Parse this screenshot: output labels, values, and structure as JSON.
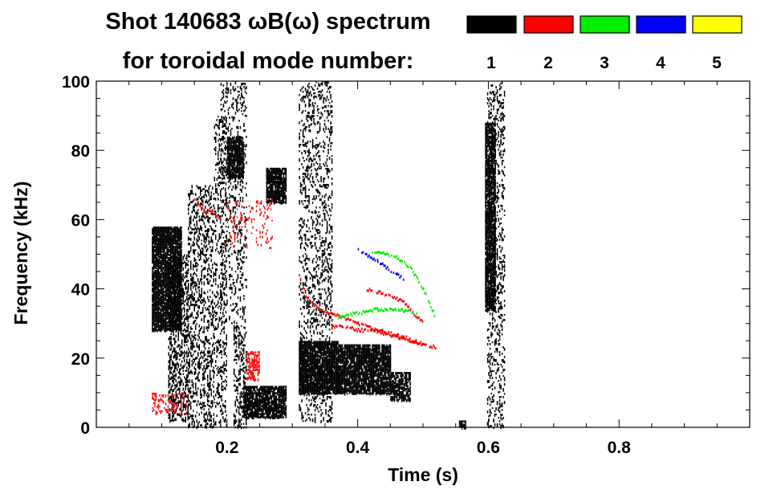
{
  "chart_data": {
    "type": "heatmap",
    "title_line1": "Shot 140683 ωB(ω) spectrum",
    "title_line2": "for toroidal mode number:",
    "xlabel": "Time (s)",
    "ylabel": "Frequency (kHz)",
    "xlim": [
      0.0,
      1.0
    ],
    "ylim": [
      0,
      100
    ],
    "x_ticks": [
      {
        "value": 0.2,
        "label": "0.2"
      },
      {
        "value": 0.4,
        "label": "0.4"
      },
      {
        "value": 0.6,
        "label": "0.6"
      },
      {
        "value": 0.8,
        "label": "0.8"
      }
    ],
    "y_ticks": [
      {
        "value": 0,
        "label": "0"
      },
      {
        "value": 20,
        "label": "20"
      },
      {
        "value": 40,
        "label": "40"
      },
      {
        "value": 60,
        "label": "60"
      },
      {
        "value": 80,
        "label": "80"
      },
      {
        "value": 100,
        "label": "100"
      }
    ],
    "legend": [
      {
        "label": "1",
        "color": "#000000"
      },
      {
        "label": "2",
        "color": "#ff0000"
      },
      {
        "label": "3",
        "color": "#00ee00"
      },
      {
        "label": "4",
        "color": "#0000ff"
      },
      {
        "label": "5",
        "color": "#ffff00"
      }
    ],
    "regions": [
      {
        "mode": 1,
        "t": [
          0.085,
          0.13
        ],
        "f": [
          28,
          58
        ],
        "density": 0.9
      },
      {
        "mode": 1,
        "t": [
          0.11,
          0.14
        ],
        "f": [
          2,
          50
        ],
        "density": 0.35
      },
      {
        "mode": 1,
        "t": [
          0.14,
          0.18
        ],
        "f": [
          0,
          70
        ],
        "density": 0.25
      },
      {
        "mode": 1,
        "t": [
          0.18,
          0.2
        ],
        "f": [
          0,
          90
        ],
        "density": 0.2
      },
      {
        "mode": 1,
        "t": [
          0.2,
          0.225
        ],
        "f": [
          72,
          84
        ],
        "density": 0.85
      },
      {
        "mode": 1,
        "t": [
          0.19,
          0.23
        ],
        "f": [
          30,
          100
        ],
        "density": 0.15
      },
      {
        "mode": 1,
        "t": [
          0.21,
          0.23
        ],
        "f": [
          0,
          30
        ],
        "density": 0.3
      },
      {
        "mode": 1,
        "t": [
          0.225,
          0.29
        ],
        "f": [
          3,
          12
        ],
        "density": 0.8
      },
      {
        "mode": 1,
        "t": [
          0.26,
          0.29
        ],
        "f": [
          65,
          75
        ],
        "density": 0.85
      },
      {
        "mode": 1,
        "t": [
          0.31,
          0.36
        ],
        "f": [
          2,
          100
        ],
        "density": 0.2
      },
      {
        "mode": 1,
        "t": [
          0.31,
          0.37
        ],
        "f": [
          10,
          25
        ],
        "density": 0.9
      },
      {
        "mode": 1,
        "t": [
          0.37,
          0.45
        ],
        "f": [
          10,
          24
        ],
        "density": 0.85
      },
      {
        "mode": 1,
        "t": [
          0.45,
          0.48
        ],
        "f": [
          8,
          16
        ],
        "density": 0.7
      },
      {
        "mode": 1,
        "t": [
          0.595,
          0.61
        ],
        "f": [
          34,
          88
        ],
        "density": 0.85
      },
      {
        "mode": 1,
        "t": [
          0.598,
          0.625
        ],
        "f": [
          0,
          100
        ],
        "density": 0.2
      },
      {
        "mode": 1,
        "t": [
          0.555,
          0.565
        ],
        "f": [
          0,
          2
        ],
        "density": 0.9
      },
      {
        "mode": 2,
        "t": [
          0.2,
          0.27
        ],
        "f": [
          52,
          66
        ],
        "density": 0.1
      },
      {
        "mode": 2,
        "t": [
          0.23,
          0.25
        ],
        "f": [
          14,
          22
        ],
        "density": 0.5
      },
      {
        "mode": 2,
        "t": [
          0.085,
          0.14
        ],
        "f": [
          4,
          10
        ],
        "density": 0.2
      }
    ],
    "mode_curves": [
      {
        "mode": 2,
        "t": [
          0.15,
          0.16,
          0.175,
          0.185,
          0.19
        ],
        "f": [
          66,
          63,
          62,
          61,
          60
        ]
      },
      {
        "mode": 2,
        "t": [
          0.31,
          0.32,
          0.34,
          0.37,
          0.4,
          0.43,
          0.45,
          0.47,
          0.5
        ],
        "f": [
          44,
          38,
          34,
          32,
          30,
          28,
          27,
          26,
          24
        ]
      },
      {
        "mode": 2,
        "t": [
          0.41,
          0.43,
          0.45,
          0.47,
          0.48,
          0.5
        ],
        "f": [
          40,
          39,
          38,
          36,
          34,
          30
        ]
      },
      {
        "mode": 2,
        "t": [
          0.36,
          0.38,
          0.4,
          0.42,
          0.44,
          0.46,
          0.48,
          0.5,
          0.52
        ],
        "f": [
          29,
          29,
          28,
          28,
          27,
          26,
          25,
          24,
          23
        ]
      },
      {
        "mode": 3,
        "t": [
          0.42,
          0.44,
          0.46,
          0.48,
          0.5,
          0.52
        ],
        "f": [
          51,
          50,
          49,
          46,
          40,
          31
        ]
      },
      {
        "mode": 3,
        "t": [
          0.37,
          0.4,
          0.43,
          0.46,
          0.49
        ],
        "f": [
          32,
          33,
          34,
          34,
          33
        ]
      },
      {
        "mode": 4,
        "t": [
          0.4,
          0.43,
          0.46,
          0.47
        ],
        "f": [
          51,
          48,
          44,
          43
        ]
      }
    ]
  }
}
